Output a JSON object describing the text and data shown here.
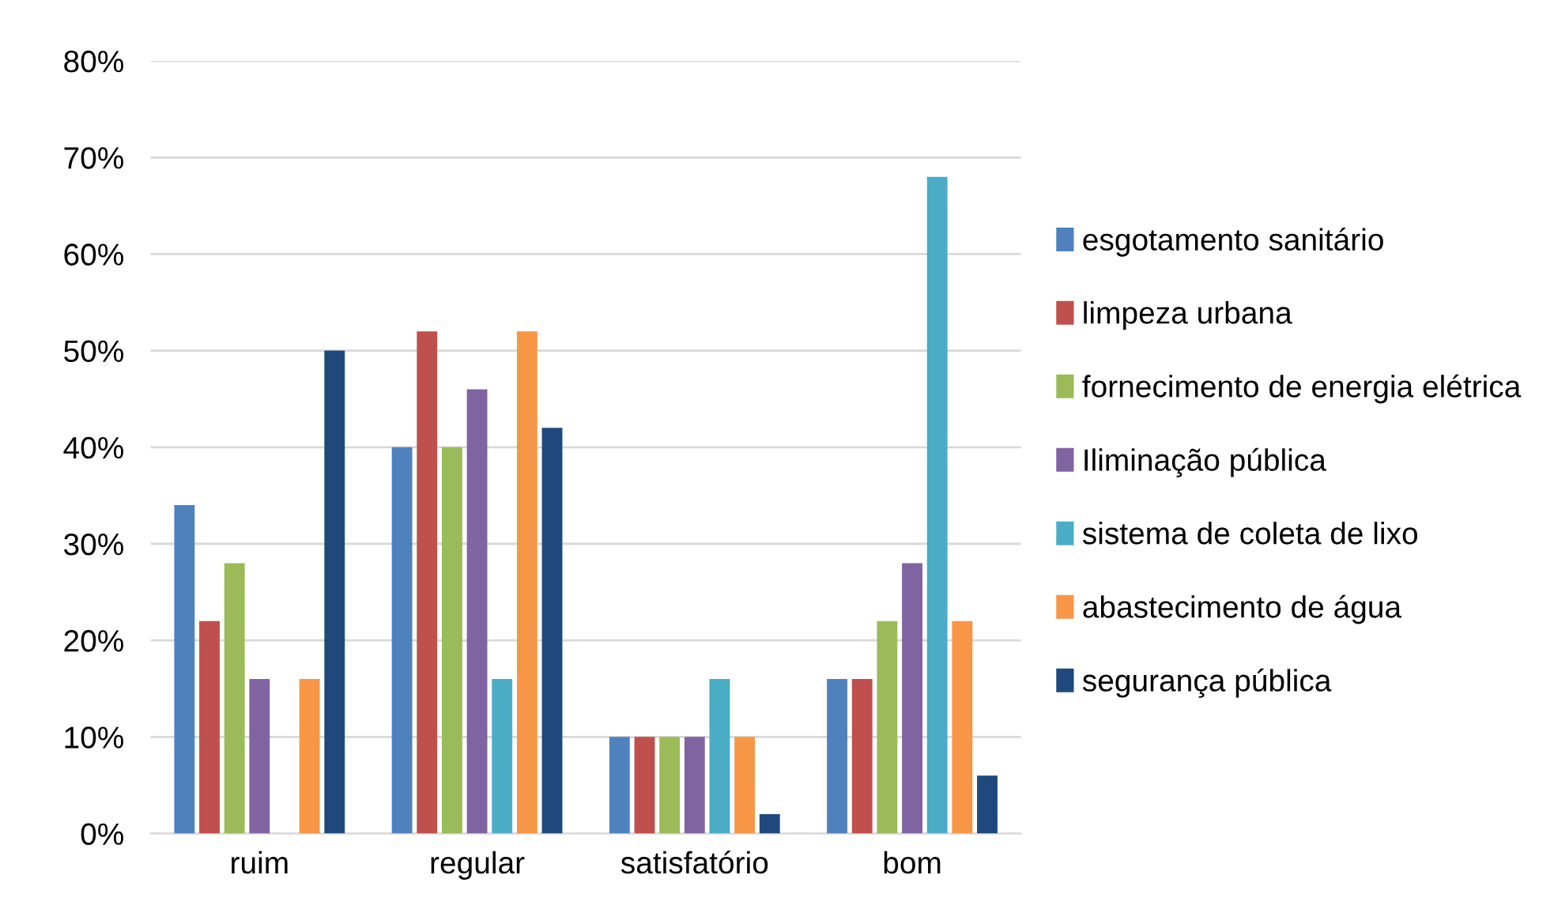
{
  "chart_data": {
    "type": "bar",
    "categories": [
      "ruim",
      "regular",
      "satisfatório",
      "bom"
    ],
    "series": [
      {
        "name": "esgotamento sanitário",
        "color": "#4f81bd",
        "values": [
          34,
          40,
          10,
          16
        ]
      },
      {
        "name": "limpeza urbana",
        "color": "#c0504d",
        "values": [
          22,
          52,
          10,
          16
        ]
      },
      {
        "name": "fornecimento de energia elétrica",
        "color": "#9bbb59",
        "values": [
          28,
          40,
          10,
          22
        ]
      },
      {
        "name": "Iliminação pública",
        "color": "#8064a2",
        "values": [
          16,
          46,
          10,
          28
        ]
      },
      {
        "name": "sistema de coleta de lixo",
        "color": "#4bacc6",
        "values": [
          0,
          16,
          16,
          68
        ]
      },
      {
        "name": "abastecimento de água",
        "color": "#f79646",
        "values": [
          16,
          52,
          10,
          22
        ]
      },
      {
        "name": "segurança pública",
        "color": "#1f497d",
        "values": [
          50,
          42,
          2,
          6
        ]
      }
    ],
    "ylim": [
      0,
      80
    ],
    "yticks": [
      {
        "value": 0,
        "label": "0%"
      },
      {
        "value": 10,
        "label": "10%"
      },
      {
        "value": 20,
        "label": "20%"
      },
      {
        "value": 30,
        "label": "30%"
      },
      {
        "value": 40,
        "label": "40%"
      },
      {
        "value": 50,
        "label": "50%"
      },
      {
        "value": 60,
        "label": "60%"
      },
      {
        "value": 70,
        "label": "70%"
      },
      {
        "value": 80,
        "label": "80%"
      }
    ],
    "grid": "y",
    "legend": "right"
  }
}
